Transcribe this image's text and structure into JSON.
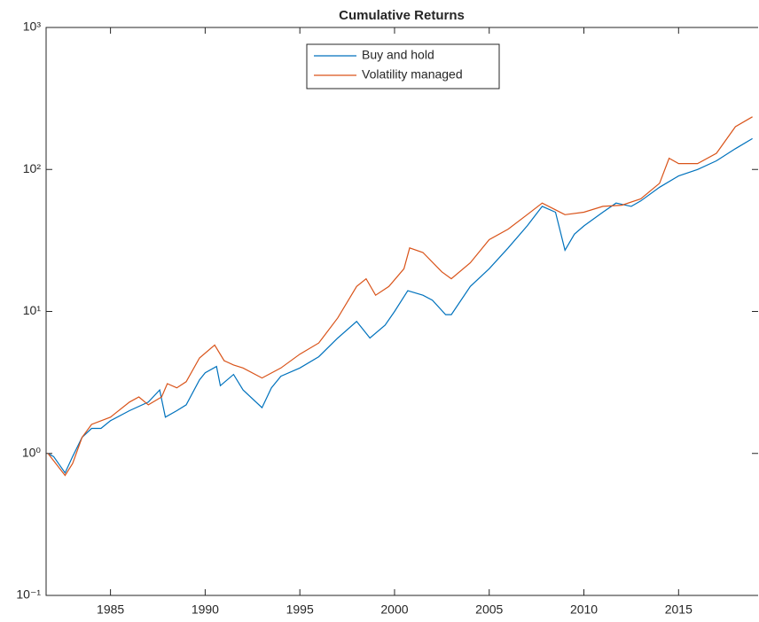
{
  "chart_data": {
    "type": "line",
    "title": "Cumulative Returns",
    "yscale": "log",
    "xlim": [
      1981.6,
      2019.2
    ],
    "xticks": [
      1985,
      1990,
      1995,
      2000,
      2005,
      2010,
      2015
    ],
    "ylim": [
      0.1,
      1000
    ],
    "yticks": [
      {
        "value": 0.1,
        "label": "10⁻¹"
      },
      {
        "value": 1,
        "label": "10⁰"
      },
      {
        "value": 10,
        "label": "10¹"
      },
      {
        "value": 100,
        "label": "10²"
      },
      {
        "value": 1000,
        "label": "10³"
      }
    ],
    "legend": "top",
    "series": [
      {
        "name": "Buy and hold",
        "color": "#0072bd",
        "x": [
          1981.7,
          1982.0,
          1982.6,
          1983.0,
          1983.5,
          1984.0,
          1984.5,
          1985.0,
          1986.0,
          1987.0,
          1987.6,
          1987.9,
          1988.5,
          1989.0,
          1989.7,
          1990.0,
          1990.6,
          1990.8,
          1991.5,
          1992.0,
          1993.0,
          1993.5,
          1994.0,
          1995.0,
          1996.0,
          1997.0,
          1998.0,
          1998.7,
          1999.5,
          2000.0,
          2000.7,
          2001.5,
          2002.0,
          2002.7,
          2003.0,
          2004.0,
          2005.0,
          2006.0,
          2007.0,
          2007.8,
          2008.5,
          2009.0,
          2009.5,
          2010.0,
          2011.0,
          2011.7,
          2012.5,
          2013.0,
          2014.0,
          2015.0,
          2016.0,
          2017.0,
          2018.0,
          2018.9
        ],
        "values": [
          1.0,
          0.95,
          0.73,
          0.95,
          1.3,
          1.5,
          1.5,
          1.7,
          2.0,
          2.3,
          2.8,
          1.8,
          2.0,
          2.2,
          3.3,
          3.7,
          4.1,
          3.0,
          3.6,
          2.8,
          2.1,
          2.9,
          3.5,
          4.0,
          4.8,
          6.5,
          8.5,
          6.5,
          8.0,
          10,
          14,
          13,
          12,
          9.5,
          9.5,
          15,
          20,
          28,
          40,
          55,
          50,
          27,
          35,
          40,
          50,
          58,
          55,
          60,
          75,
          90,
          100,
          115,
          140,
          165
        ]
      },
      {
        "name": "Volatility managed",
        "color": "#d95319",
        "x": [
          1981.7,
          1982.6,
          1983.0,
          1983.5,
          1984.0,
          1985.0,
          1986.0,
          1986.5,
          1987.0,
          1987.7,
          1988.0,
          1988.5,
          1989.0,
          1989.7,
          1990.5,
          1991.0,
          1991.5,
          1992.0,
          1993.0,
          1994.0,
          1995.0,
          1996.0,
          1997.0,
          1998.0,
          1998.5,
          1999.0,
          1999.7,
          2000.5,
          2000.8,
          2001.5,
          2002.5,
          2003.0,
          2004.0,
          2005.0,
          2006.0,
          2007.0,
          2007.8,
          2008.5,
          2009.0,
          2010.0,
          2011.0,
          2012.0,
          2013.0,
          2014.0,
          2014.5,
          2015.0,
          2016.0,
          2017.0,
          2018.0,
          2018.9
        ],
        "values": [
          1.0,
          0.7,
          0.85,
          1.3,
          1.6,
          1.8,
          2.3,
          2.5,
          2.2,
          2.5,
          3.1,
          2.9,
          3.2,
          4.7,
          5.8,
          4.5,
          4.2,
          4.0,
          3.4,
          4.0,
          5.0,
          6.0,
          9.0,
          15,
          17,
          13,
          15,
          20,
          28,
          26,
          19,
          17,
          22,
          32,
          38,
          48,
          58,
          52,
          48,
          50,
          55,
          56,
          62,
          80,
          120,
          110,
          110,
          130,
          200,
          235
        ]
      }
    ]
  }
}
